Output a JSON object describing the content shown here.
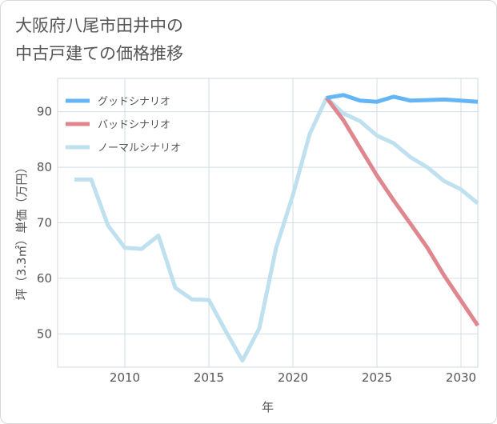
{
  "title_lines": [
    "大阪府八尾市田井中の",
    "中古戸建ての価格推移"
  ],
  "chart_data": {
    "type": "line",
    "title": "大阪府八尾市田井中の中古戸建ての価格推移",
    "xlabel": "年",
    "ylabel": "坪（3.3㎡）単価（万円）",
    "xlim": [
      2006,
      2031
    ],
    "ylim": [
      44,
      96
    ],
    "x_ticks": [
      2010,
      2015,
      2020,
      2025,
      2030
    ],
    "y_ticks": [
      50,
      60,
      70,
      80,
      90
    ],
    "grid": true,
    "legend_position": "top-left",
    "series": [
      {
        "name": "グッドシナリオ",
        "color": "#64b5f6",
        "x": [
          2022,
          2023,
          2024,
          2025,
          2026,
          2027,
          2028,
          2029,
          2030,
          2031
        ],
        "values": [
          92.5,
          93.0,
          92.0,
          91.8,
          92.7,
          92.0,
          92.1,
          92.2,
          92.0,
          91.8
        ]
      },
      {
        "name": "バッドシナリオ",
        "color": "#e0868e",
        "x": [
          2022,
          2023,
          2024,
          2025,
          2026,
          2027,
          2028,
          2029,
          2030,
          2031
        ],
        "values": [
          92.5,
          88.5,
          83.5,
          78.5,
          74.0,
          69.8,
          65.5,
          60.5,
          56.0,
          51.5
        ]
      },
      {
        "name": "ノーマルシナリオ",
        "color": "#bfe0ee",
        "x": [
          2007,
          2008,
          2009,
          2010,
          2011,
          2012,
          2013,
          2014,
          2015,
          2016,
          2017,
          2018,
          2019,
          2020,
          2021,
          2022,
          2023,
          2024,
          2025,
          2026,
          2027,
          2028,
          2029,
          2030,
          2031
        ],
        "values": [
          77.8,
          77.8,
          69.5,
          65.5,
          65.3,
          67.7,
          58.3,
          56.2,
          56.1,
          50.5,
          45.2,
          51.0,
          65.5,
          75.0,
          86.0,
          92.5,
          89.7,
          88.3,
          85.7,
          84.3,
          81.8,
          80.0,
          77.5,
          76.0,
          73.5
        ]
      }
    ]
  }
}
